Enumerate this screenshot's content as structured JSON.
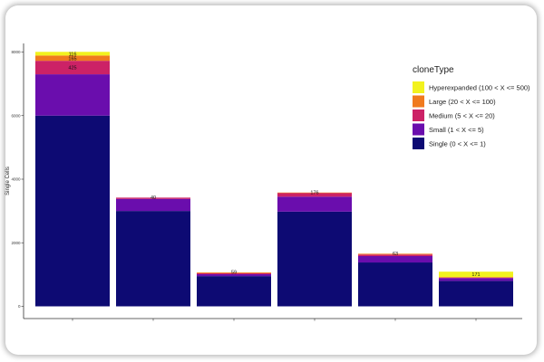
{
  "chart_data": {
    "type": "bar",
    "stacked": true,
    "categories": [
      "",
      "",
      "",
      "",
      "",
      ""
    ],
    "ylabel": "Single Cells",
    "xlabel": "",
    "ylim": [
      0,
      8200
    ],
    "yticks": [
      0,
      2000,
      4000,
      6000,
      8000
    ],
    "grid": false,
    "legend": {
      "title": "cloneType",
      "placement": "right"
    },
    "series": [
      {
        "name": "Single (0 < X <= 1)",
        "color": "#0d0a73",
        "values": [
          6000,
          3000,
          950,
          2980,
          1380,
          800
        ],
        "labels": [
          "",
          "",
          "",
          "",
          "",
          ""
        ]
      },
      {
        "name": "Small (1 < X <= 5)",
        "color": "#6a0dad",
        "values": [
          1300,
          380,
          60,
          470,
          200,
          90
        ],
        "labels": [
          "",
          "",
          "",
          "",
          "",
          ""
        ]
      },
      {
        "name": "Medium (5 < X <= 20)",
        "color": "#cc2266",
        "values": [
          425,
          40,
          30,
          120,
          50,
          20
        ],
        "labels": [
          "425",
          "",
          "",
          "",
          "",
          ""
        ]
      },
      {
        "name": "Large (20 < X <= 100)",
        "color": "#f07a1e",
        "values": [
          165,
          0,
          25,
          10,
          25,
          10
        ],
        "labels": [
          "165",
          "",
          "",
          "",
          "",
          ""
        ]
      },
      {
        "name": "Hyperexpanded (100 < X <= 500)",
        "color": "#f2f21e",
        "values": [
          116,
          0,
          0,
          0,
          0,
          171
        ],
        "labels": [
          "116",
          "",
          "",
          "",
          "",
          "171"
        ]
      }
    ],
    "top_labels": [
      "",
      "40",
      "59",
      "176",
      "63",
      ""
    ]
  }
}
